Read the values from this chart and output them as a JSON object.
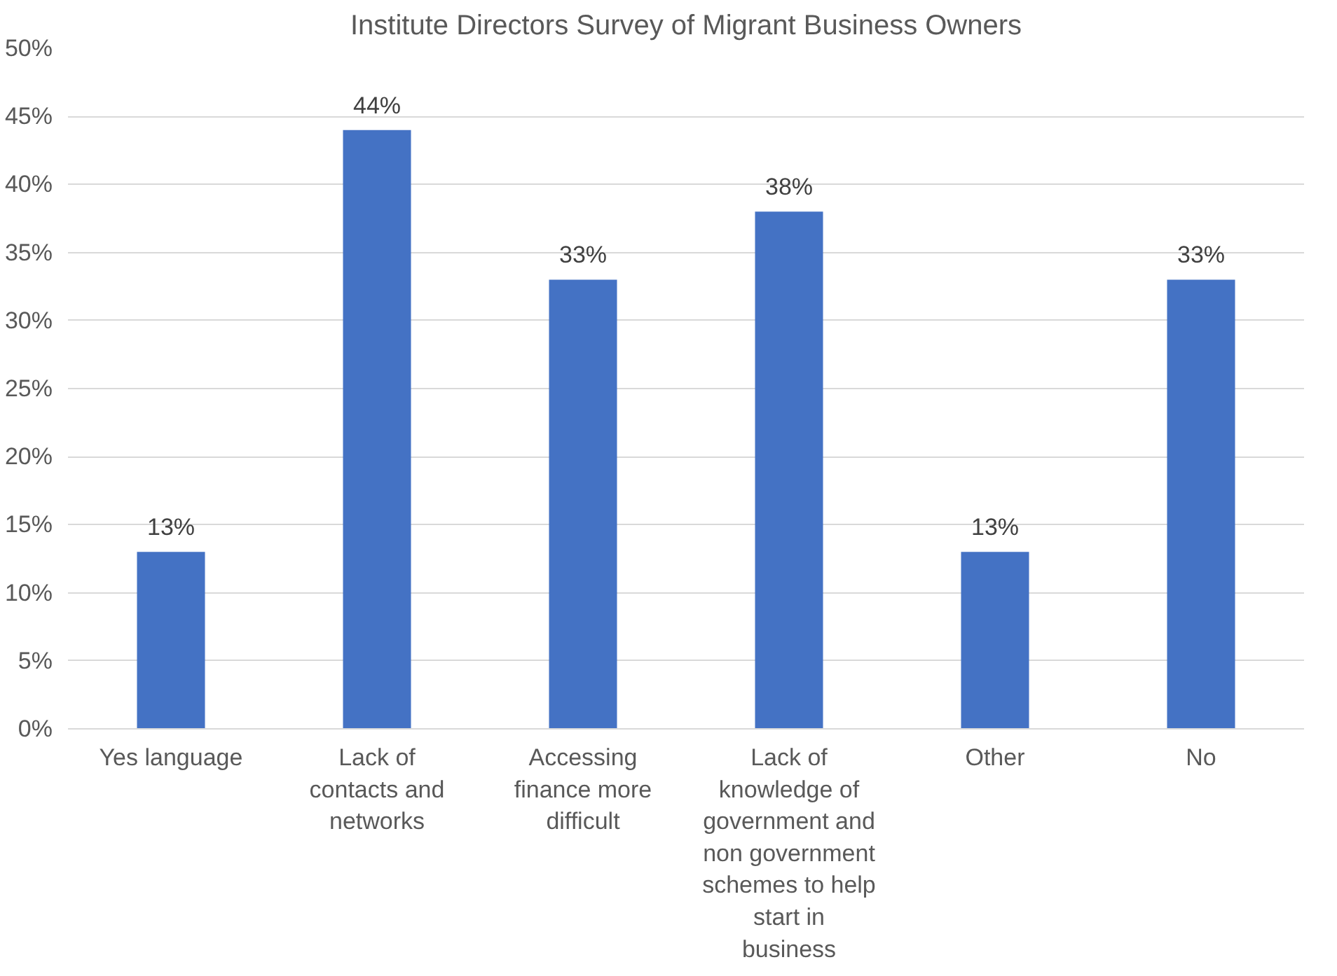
{
  "chart_data": {
    "type": "bar",
    "title": "Institute Directors Survey of Migrant Business Owners",
    "categories": [
      "Yes language",
      "Lack of contacts and networks",
      "Accessing finance more difficult",
      "Lack of knowledge of government and non government schemes to help start in business",
      "Other",
      "No"
    ],
    "values": [
      13,
      44,
      33,
      38,
      13,
      33
    ],
    "value_labels": [
      "13%",
      "44%",
      "33%",
      "38%",
      "13%",
      "33%"
    ],
    "color": "#4472c4",
    "ylim": [
      0,
      50
    ],
    "yticks": [
      {
        "value": 0,
        "label": "0%"
      },
      {
        "value": 5,
        "label": "5%"
      },
      {
        "value": 10,
        "label": "10%"
      },
      {
        "value": 15,
        "label": "15%"
      },
      {
        "value": 20,
        "label": "20%"
      },
      {
        "value": 25,
        "label": "25%"
      },
      {
        "value": 30,
        "label": "30%"
      },
      {
        "value": 35,
        "label": "35%"
      },
      {
        "value": 40,
        "label": "40%"
      },
      {
        "value": 45,
        "label": "45%"
      },
      {
        "value": 50,
        "label": "50%"
      }
    ],
    "grid": "y"
  }
}
